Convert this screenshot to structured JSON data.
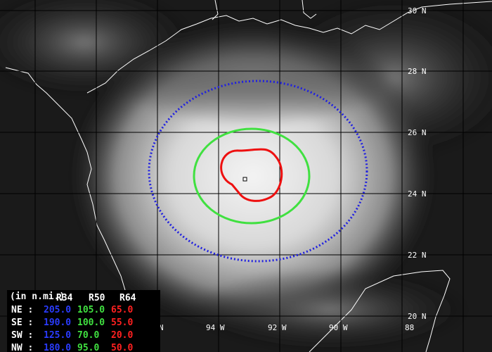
{
  "map": {
    "lat_labels": [
      "30 N",
      "28 N",
      "26 N",
      "24 N",
      "22 N",
      "20 N"
    ],
    "lon_labels": [
      "N",
      "94 W",
      "92 W",
      "90 W",
      "88"
    ]
  },
  "table": {
    "unit": "(in n.mi.)",
    "columns": [
      "R34",
      "R50",
      "R64"
    ],
    "rows": [
      {
        "label": "NE :",
        "values": [
          "205.0",
          "105.0",
          "65.0"
        ]
      },
      {
        "label": "SE :",
        "values": [
          "190.0",
          "100.0",
          "55.0"
        ]
      },
      {
        "label": "SW :",
        "values": [
          "125.0",
          "70.0",
          "20.0"
        ]
      },
      {
        "label": "NW :",
        "values": [
          "180.0",
          "95.0",
          "50.0"
        ]
      }
    ]
  }
}
